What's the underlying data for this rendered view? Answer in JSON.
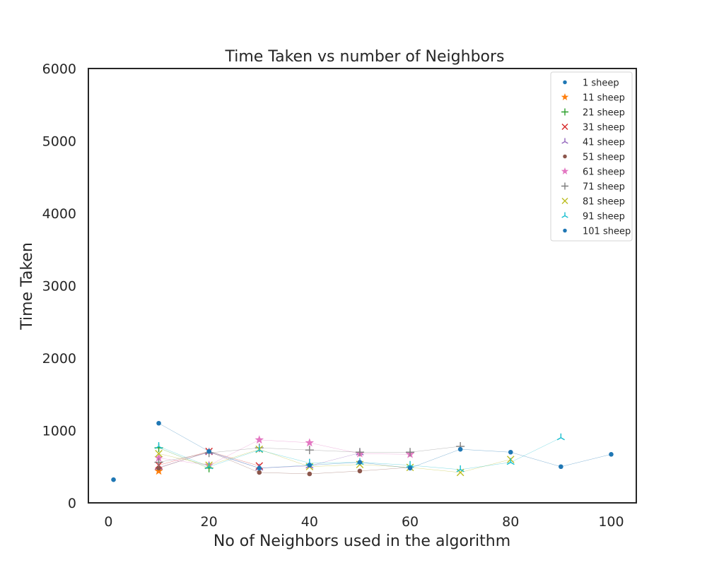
{
  "chart_data": {
    "type": "scatter",
    "title": "Time Taken vs number of Neighbors",
    "xlabel": "No of Neighbors used in the algorithm",
    "ylabel": "Time Taken",
    "xlim": [
      -4,
      105
    ],
    "ylim": [
      0,
      6000
    ],
    "xticks": [
      0,
      20,
      40,
      60,
      80,
      100
    ],
    "yticks": [
      0,
      1000,
      2000,
      3000,
      4000,
      5000,
      6000
    ],
    "grid": false,
    "legend_position": "top-right",
    "series": [
      {
        "name": "1 sheep",
        "color": "#1f77b4",
        "marker": "circle",
        "x": [
          1
        ],
        "y": [
          320
        ]
      },
      {
        "name": "11 sheep",
        "color": "#ff7f0e",
        "marker": "star",
        "x": [
          10
        ],
        "y": [
          440
        ]
      },
      {
        "name": "21 sheep",
        "color": "#2ca02c",
        "marker": "plus",
        "x": [
          10,
          20
        ],
        "y": [
          760,
          480
        ]
      },
      {
        "name": "31 sheep",
        "color": "#d62728",
        "marker": "x",
        "x": [
          10,
          20,
          30
        ],
        "y": [
          520,
          710,
          510
        ]
      },
      {
        "name": "41 sheep",
        "color": "#9467bd",
        "marker": "tri",
        "x": [
          10,
          20,
          30,
          40,
          50
        ],
        "y": [
          490,
          700,
          480,
          510,
          690
        ]
      },
      {
        "name": "51 sheep",
        "color": "#8c564b",
        "marker": "circle",
        "x": [
          10,
          20,
          30,
          40,
          50,
          60
        ],
        "y": [
          480,
          710,
          420,
          400,
          440,
          490
        ]
      },
      {
        "name": "61 sheep",
        "color": "#e377c2",
        "marker": "star",
        "x": [
          10,
          20,
          30,
          40,
          50,
          60
        ],
        "y": [
          620,
          520,
          870,
          830,
          680,
          670
        ]
      },
      {
        "name": "71 sheep",
        "color": "#7f7f7f",
        "marker": "plus",
        "x": [
          10,
          20,
          30,
          40,
          50,
          60,
          70
        ],
        "y": [
          560,
          690,
          760,
          730,
          700,
          700,
          780
        ]
      },
      {
        "name": "81 sheep",
        "color": "#bcbd22",
        "marker": "x",
        "x": [
          10,
          20,
          30,
          40,
          50,
          60,
          70,
          80
        ],
        "y": [
          680,
          520,
          740,
          500,
          530,
          490,
          420,
          600
        ]
      },
      {
        "name": "91 sheep",
        "color": "#17becf",
        "marker": "tri",
        "x": [
          10,
          20,
          30,
          40,
          50,
          60,
          70,
          80,
          90
        ],
        "y": [
          780,
          500,
          730,
          550,
          560,
          520,
          460,
          560,
          900
        ]
      },
      {
        "name": "101 sheep",
        "color": "#1f77b4",
        "marker": "circle",
        "x": [
          10,
          20,
          30,
          40,
          50,
          60,
          70,
          80,
          90,
          100
        ],
        "y": [
          1100,
          710,
          480,
          520,
          560,
          480,
          740,
          700,
          500,
          670
        ]
      }
    ]
  }
}
